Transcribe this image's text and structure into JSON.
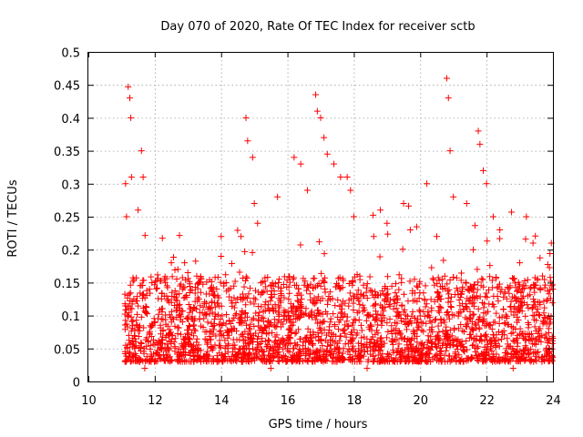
{
  "chart_data": {
    "type": "scatter",
    "title": "Day 070 of 2020, Rate Of TEC Index for receiver sctb",
    "xlabel": "GPS time / hours",
    "ylabel": "ROTI / TECUs",
    "xlim": [
      10,
      24
    ],
    "ylim": [
      0,
      0.5
    ],
    "xticks": [
      10,
      12,
      14,
      16,
      18,
      20,
      22,
      24
    ],
    "xtick_labels": [
      "10",
      "12",
      "14",
      "16",
      "18",
      "20",
      "22",
      "24"
    ],
    "yticks": [
      0,
      0.05,
      0.1,
      0.15,
      0.2,
      0.25,
      0.3,
      0.35,
      0.4,
      0.45,
      0.5
    ],
    "ytick_labels": [
      "0",
      "0.05",
      "0.1",
      "0.15",
      "0.2",
      "0.25",
      "0.3",
      "0.35",
      "0.4",
      "0.45",
      "0.5"
    ],
    "grid": true,
    "marker": "+",
    "series_color": "#ff0000",
    "data_range": {
      "x": [
        11.1,
        24
      ],
      "y": [
        0.01,
        0.46
      ]
    },
    "points": [
      [
        11.2,
        0.447
      ],
      [
        11.25,
        0.43
      ],
      [
        11.28,
        0.4
      ],
      [
        11.12,
        0.3
      ],
      [
        11.3,
        0.31
      ],
      [
        11.15,
        0.25
      ],
      [
        11.6,
        0.35
      ],
      [
        11.65,
        0.31
      ],
      [
        11.5,
        0.26
      ],
      [
        11.18,
        0.1
      ],
      [
        11.22,
        0.07
      ],
      [
        11.4,
        0.05
      ],
      [
        11.55,
        0.03
      ],
      [
        11.7,
        0.02
      ],
      [
        11.8,
        0.06
      ],
      [
        12.0,
        0.09
      ],
      [
        12.2,
        0.05
      ],
      [
        12.4,
        0.04
      ],
      [
        12.5,
        0.18
      ],
      [
        12.7,
        0.17
      ],
      [
        12.9,
        0.18
      ],
      [
        13.0,
        0.06
      ],
      [
        13.3,
        0.04
      ],
      [
        13.6,
        0.11
      ],
      [
        13.9,
        0.13
      ],
      [
        14.0,
        0.19
      ],
      [
        14.2,
        0.05
      ],
      [
        14.4,
        0.08
      ],
      [
        14.6,
        0.22
      ],
      [
        14.75,
        0.4
      ],
      [
        14.8,
        0.365
      ],
      [
        14.95,
        0.34
      ],
      [
        15.0,
        0.27
      ],
      [
        15.1,
        0.24
      ],
      [
        15.3,
        0.04
      ],
      [
        15.5,
        0.02
      ],
      [
        15.7,
        0.28
      ],
      [
        15.8,
        0.12
      ],
      [
        16.0,
        0.05
      ],
      [
        16.2,
        0.34
      ],
      [
        16.4,
        0.33
      ],
      [
        16.6,
        0.29
      ],
      [
        16.85,
        0.435
      ],
      [
        16.9,
        0.41
      ],
      [
        17.0,
        0.4
      ],
      [
        17.1,
        0.37
      ],
      [
        17.2,
        0.345
      ],
      [
        17.4,
        0.33
      ],
      [
        17.6,
        0.31
      ],
      [
        17.8,
        0.31
      ],
      [
        17.9,
        0.29
      ],
      [
        18.0,
        0.25
      ],
      [
        18.2,
        0.04
      ],
      [
        18.4,
        0.02
      ],
      [
        18.6,
        0.22
      ],
      [
        18.8,
        0.26
      ],
      [
        19.0,
        0.24
      ],
      [
        19.2,
        0.11
      ],
      [
        19.5,
        0.27
      ],
      [
        19.7,
        0.23
      ],
      [
        19.9,
        0.05
      ],
      [
        20.2,
        0.3
      ],
      [
        20.5,
        0.22
      ],
      [
        20.8,
        0.46
      ],
      [
        20.85,
        0.43
      ],
      [
        20.9,
        0.35
      ],
      [
        21.0,
        0.28
      ],
      [
        21.2,
        0.06
      ],
      [
        21.4,
        0.27
      ],
      [
        21.6,
        0.2
      ],
      [
        21.75,
        0.38
      ],
      [
        21.8,
        0.36
      ],
      [
        21.9,
        0.32
      ],
      [
        22.0,
        0.3
      ],
      [
        22.2,
        0.25
      ],
      [
        22.4,
        0.23
      ],
      [
        22.6,
        0.05
      ],
      [
        22.8,
        0.02
      ],
      [
        23.0,
        0.18
      ],
      [
        23.2,
        0.25
      ],
      [
        23.4,
        0.21
      ],
      [
        23.6,
        0.12
      ],
      [
        23.8,
        0.05
      ],
      [
        24.0,
        0.14
      ]
    ]
  }
}
